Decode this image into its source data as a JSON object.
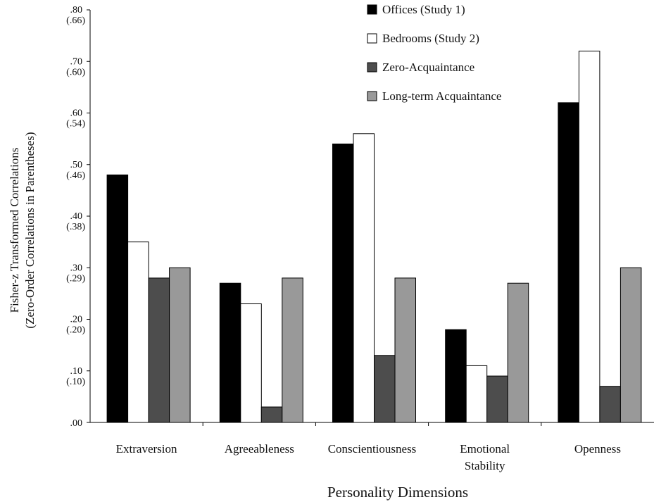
{
  "chart_data": {
    "type": "bar",
    "xlabel": "Personality Dimensions",
    "ylabel_lines": [
      "Fisher-z Transformed Correlations",
      "(Zero-Order Correlations in Parentheses)"
    ],
    "ylim": [
      0,
      0.8
    ],
    "yticks": [
      {
        "value": 0.0,
        "label": ".00",
        "sub": ""
      },
      {
        "value": 0.1,
        "label": ".10",
        "sub": "(.10)"
      },
      {
        "value": 0.2,
        "label": ".20",
        "sub": "(.20)"
      },
      {
        "value": 0.3,
        "label": ".30",
        "sub": "(.29)"
      },
      {
        "value": 0.4,
        "label": ".40",
        "sub": "(.38)"
      },
      {
        "value": 0.5,
        "label": ".50",
        "sub": "(.46)"
      },
      {
        "value": 0.6,
        "label": ".60",
        "sub": "(.54)"
      },
      {
        "value": 0.7,
        "label": ".70",
        "sub": "(.60)"
      },
      {
        "value": 0.8,
        "label": ".80",
        "sub": "(.66)"
      }
    ],
    "categories": [
      [
        "Extraversion"
      ],
      [
        "Agreeableness"
      ],
      [
        "Conscientiousness"
      ],
      [
        "Emotional",
        "Stability"
      ],
      [
        "Openness"
      ]
    ],
    "series": [
      {
        "name": "Offices (Study 1)",
        "color": "#000000",
        "values": [
          0.48,
          0.27,
          0.54,
          0.18,
          0.62
        ]
      },
      {
        "name": "Bedrooms (Study 2)",
        "color": "#ffffff",
        "values": [
          0.35,
          0.23,
          0.56,
          0.11,
          0.72
        ]
      },
      {
        "name": "Zero-Acquaintance",
        "color": "#4d4d4d",
        "values": [
          0.28,
          0.03,
          0.13,
          0.09,
          0.07
        ]
      },
      {
        "name": "Long-term Acquaintance",
        "color": "#999999",
        "values": [
          0.3,
          0.28,
          0.28,
          0.27,
          0.3
        ]
      }
    ],
    "legend_position": "top-right",
    "grid": false
  }
}
